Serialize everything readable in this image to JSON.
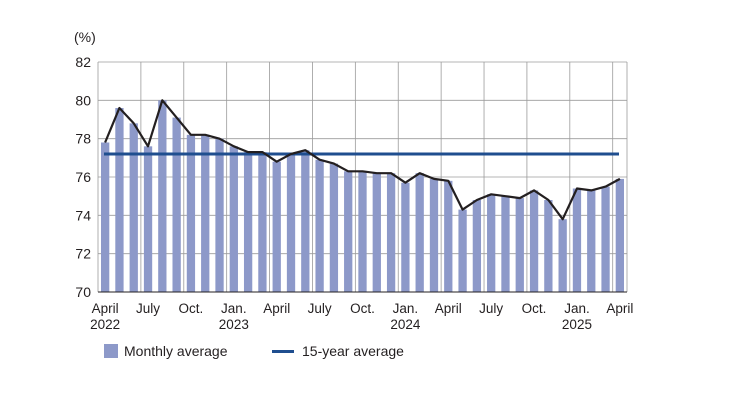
{
  "chart_data": {
    "type": "bar",
    "y_unit_label": "(%)",
    "ylim": [
      70,
      82
    ],
    "y_ticks": [
      70,
      72,
      74,
      76,
      78,
      80,
      82
    ],
    "grid": true,
    "legend_position": "bottom-left",
    "x_tick_labels": [
      {
        "index": 0,
        "lines": [
          "April",
          "2022"
        ]
      },
      {
        "index": 3,
        "lines": [
          "July"
        ]
      },
      {
        "index": 6,
        "lines": [
          "Oct."
        ]
      },
      {
        "index": 9,
        "lines": [
          "Jan.",
          "2023"
        ]
      },
      {
        "index": 12,
        "lines": [
          "April"
        ]
      },
      {
        "index": 15,
        "lines": [
          "July"
        ]
      },
      {
        "index": 18,
        "lines": [
          "Oct."
        ]
      },
      {
        "index": 21,
        "lines": [
          "Jan.",
          "2024"
        ]
      },
      {
        "index": 24,
        "lines": [
          "April"
        ]
      },
      {
        "index": 27,
        "lines": [
          "July"
        ]
      },
      {
        "index": 30,
        "lines": [
          "Oct."
        ]
      },
      {
        "index": 33,
        "lines": [
          "Jan.",
          "2025"
        ]
      },
      {
        "index": 36,
        "lines": [
          "April"
        ]
      }
    ],
    "series": [
      {
        "name": "Monthly average",
        "color": "#8d99c9",
        "values": [
          77.8,
          79.6,
          78.8,
          77.6,
          80.0,
          79.1,
          78.2,
          78.2,
          78.0,
          77.6,
          77.3,
          77.3,
          76.8,
          77.2,
          77.4,
          76.9,
          76.7,
          76.3,
          76.3,
          76.2,
          76.2,
          75.7,
          76.2,
          75.9,
          75.8,
          74.3,
          74.8,
          75.1,
          75.0,
          74.9,
          75.3,
          74.8,
          73.8,
          75.4,
          75.3,
          75.5,
          75.9
        ]
      },
      {
        "name": "15-year average",
        "color": "#1f4e8f",
        "value": 77.2
      }
    ],
    "line_color": "#231f20"
  }
}
